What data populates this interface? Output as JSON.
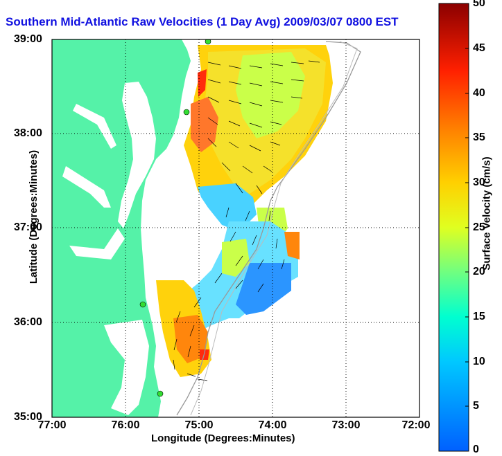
{
  "title": "Southern Mid-Atlantic Raw Velocities (1 Day Avg) 2009/03/07 0800 EST",
  "x_axis": {
    "label": "Longitude (Degrees:Minutes)",
    "ticks": [
      "77:00",
      "76:00",
      "75:00",
      "74:00",
      "73:00",
      "72:00"
    ]
  },
  "y_axis": {
    "label": "Latitude (Degrees:Minutes)",
    "ticks": [
      "39:00",
      "38:00",
      "37:00",
      "36:00",
      "35:00"
    ]
  },
  "colorbar": {
    "label": "Surface Velocity (cm/s)",
    "ticks": [
      "50",
      "45",
      "40",
      "35",
      "30",
      "25",
      "20",
      "15",
      "10",
      "5",
      "0"
    ],
    "range": [
      0,
      50
    ]
  },
  "colors": {
    "land": "#55f2a8",
    "title": "#1010e0",
    "station": "#33dd33"
  },
  "grid": "dotted"
}
